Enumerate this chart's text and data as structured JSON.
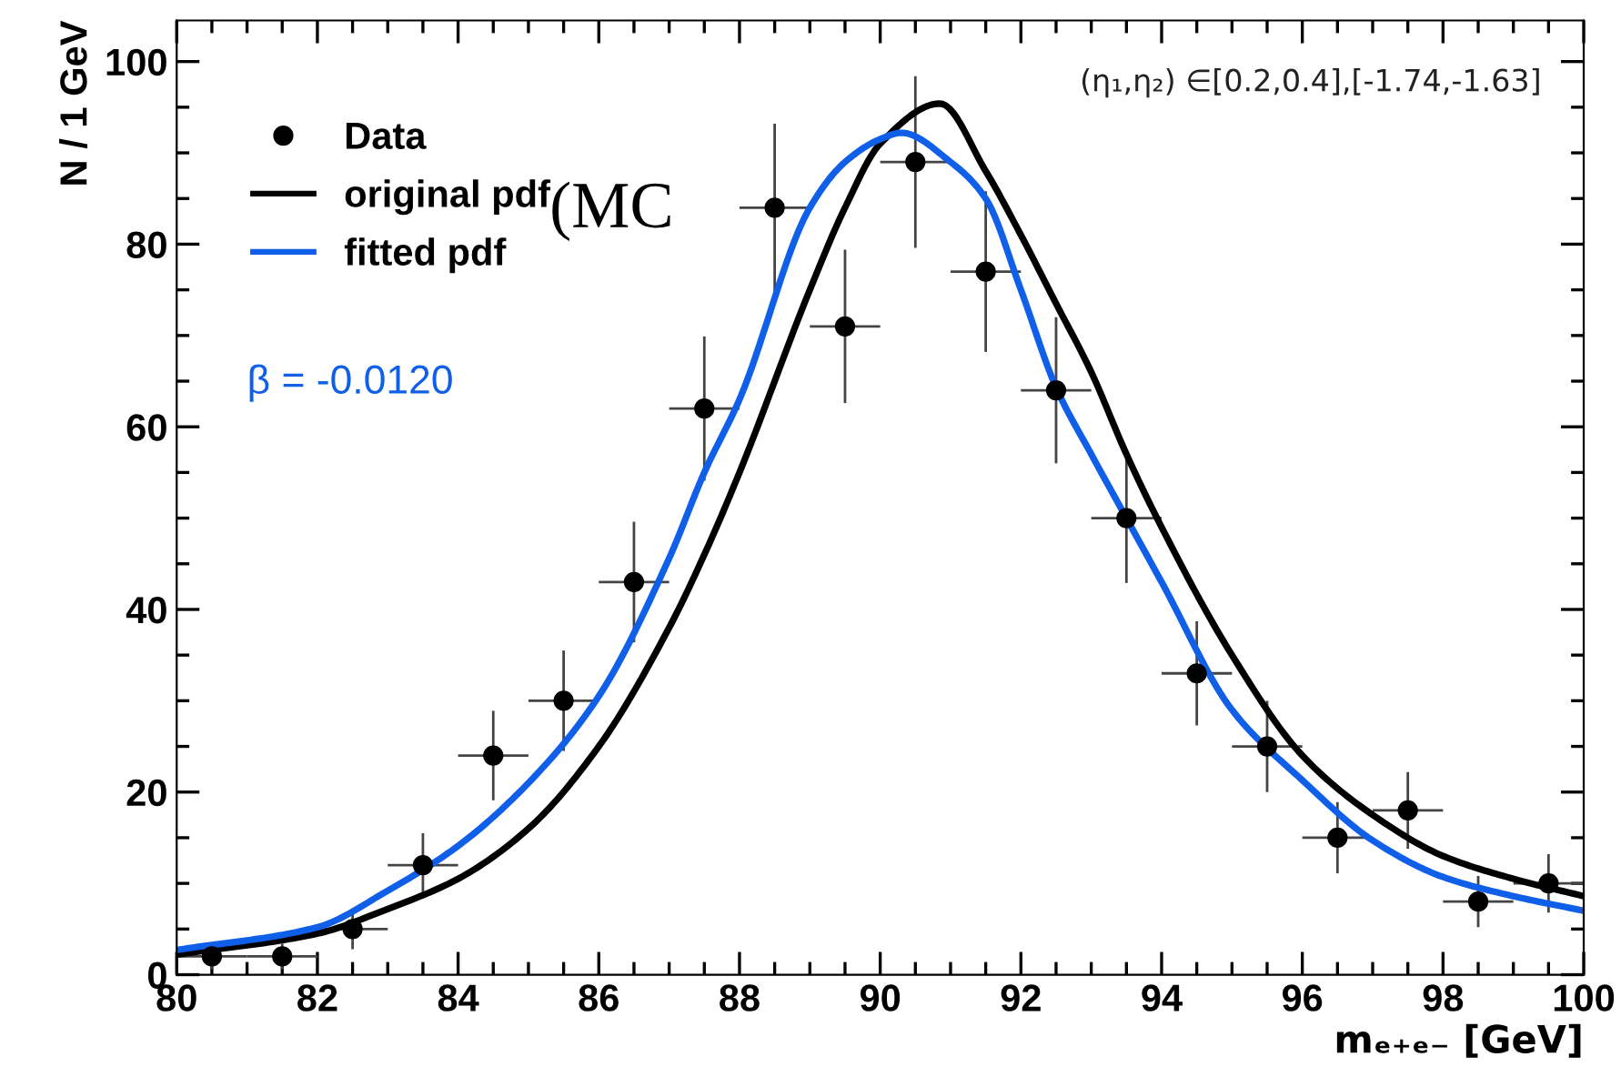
{
  "chart_data": {
    "type": "scatter",
    "xlabel": "mₑ₊ₑ₋ [GeV]",
    "ylabel": "N / 1 GeV",
    "xlim": [
      80,
      100
    ],
    "ylim": [
      0,
      104.5
    ],
    "xticks": [
      80,
      {
        "value": 80.5,
        "label": null
      },
      {
        "value": 81,
        "label": null
      },
      {
        "value": 81.5,
        "label": null
      },
      82,
      {
        "value": 82.5,
        "label": null
      },
      {
        "value": 83,
        "label": null
      },
      {
        "value": 83.5,
        "label": null
      },
      84,
      {
        "value": 84.5,
        "label": null
      },
      {
        "value": 85,
        "label": null
      },
      {
        "value": 85.5,
        "label": null
      },
      86,
      {
        "value": 86.5,
        "label": null
      },
      {
        "value": 87,
        "label": null
      },
      {
        "value": 87.5,
        "label": null
      },
      88,
      {
        "value": 88.5,
        "label": null
      },
      {
        "value": 89,
        "label": null
      },
      {
        "value": 89.5,
        "label": null
      },
      90,
      {
        "value": 90.5,
        "label": null
      },
      {
        "value": 91,
        "label": null
      },
      {
        "value": 91.5,
        "label": null
      },
      92,
      {
        "value": 92.5,
        "label": null
      },
      {
        "value": 93,
        "label": null
      },
      {
        "value": 93.5,
        "label": null
      },
      94,
      {
        "value": 94.5,
        "label": null
      },
      {
        "value": 95,
        "label": null
      },
      {
        "value": 95.5,
        "label": null
      },
      96,
      {
        "value": 96.5,
        "label": null
      },
      {
        "value": 97,
        "label": null
      },
      {
        "value": 97.5,
        "label": null
      },
      98,
      {
        "value": 98.5,
        "label": null
      },
      {
        "value": 99,
        "label": null
      },
      {
        "value": 99.5,
        "label": null
      },
      100
    ],
    "yticks": [
      0,
      {
        "value": 5,
        "label": null
      },
      {
        "value": 10,
        "label": null
      },
      {
        "value": 15,
        "label": null
      },
      20,
      {
        "value": 25,
        "label": null
      },
      {
        "value": 30,
        "label": null
      },
      {
        "value": 35,
        "label": null
      },
      40,
      {
        "value": 45,
        "label": null
      },
      {
        "value": 50,
        "label": null
      },
      {
        "value": 55,
        "label": null
      },
      60,
      {
        "value": 65,
        "label": null
      },
      {
        "value": 70,
        "label": null
      },
      {
        "value": 75,
        "label": null
      },
      80,
      {
        "value": 85,
        "label": null
      },
      {
        "value": 90,
        "label": null
      },
      {
        "value": 95,
        "label": null
      },
      100
    ],
    "grid": false,
    "legend": "top left",
    "series": [
      {
        "name": "Data",
        "color": "#000000",
        "marker": "circle",
        "x": [
          80.5,
          81.5,
          82.5,
          83.5,
          84.5,
          85.5,
          86.5,
          87.5,
          88.5,
          89.5,
          90.5,
          91.5,
          92.5,
          93.5,
          94.5,
          95.5,
          96.5,
          97.5,
          98.5,
          99.5
        ],
        "values": [
          2,
          2,
          5,
          12,
          24,
          30,
          43,
          62,
          84,
          71,
          89,
          77,
          64,
          50,
          33,
          25,
          15,
          18,
          8,
          10
        ],
        "errors": [
          1.4,
          1.4,
          2.2,
          3.5,
          4.9,
          5.5,
          6.6,
          7.9,
          9.2,
          8.4,
          9.4,
          8.8,
          8,
          7.1,
          5.7,
          5,
          3.9,
          4.2,
          2.8,
          3.2
        ],
        "xerrors": [
          0.5,
          0.5,
          0.5,
          0.5,
          0.5,
          0.5,
          0.5,
          0.5,
          0.5,
          0.5,
          0.5,
          0.5,
          0.5,
          0.5,
          0.5,
          0.5,
          0.5,
          0.5,
          0.5,
          0.5
        ]
      },
      {
        "name": "original pdf",
        "type": "line",
        "color": "#000000",
        "marker": "none",
        "line_style": "solid",
        "x": [
          80,
          82,
          83,
          84,
          85,
          86,
          87,
          87.5,
          88,
          89,
          89.5,
          90,
          90.85,
          91.5,
          92,
          92.5,
          93,
          93.5,
          94,
          95,
          96,
          97,
          98,
          99,
          100
        ],
        "values": [
          2.2,
          4.5,
          7.2,
          10.5,
          16,
          25,
          38,
          46,
          55,
          75,
          84,
          91,
          95.4,
          88,
          81,
          73.5,
          66,
          57,
          49,
          35,
          24,
          17.5,
          13,
          10.5,
          8.6
        ]
      },
      {
        "name": "fitted pdf",
        "type": "line",
        "color": "#0f5fe8",
        "marker": "none",
        "line_style": "solid",
        "x": [
          80,
          82,
          83,
          84,
          85,
          86,
          87,
          87.5,
          88,
          89,
          89.5,
          90,
          90.3,
          91,
          91.5,
          92,
          92.5,
          93,
          93.5,
          94,
          95,
          96,
          97,
          98,
          99,
          100
        ],
        "values": [
          2.7,
          5.2,
          9.2,
          14.1,
          21,
          30.5,
          45.6,
          55,
          63,
          84,
          89,
          91.5,
          92.2,
          89,
          85,
          75,
          64.3,
          57,
          50,
          43,
          29,
          21.3,
          14.7,
          10.7,
          8.6,
          7
        ]
      }
    ],
    "annotations": [
      "(η₁,η₂) ∈[0.2,0.4],[-1.74,-1.63]",
      "β = -0.0120",
      "(MC"
    ]
  }
}
